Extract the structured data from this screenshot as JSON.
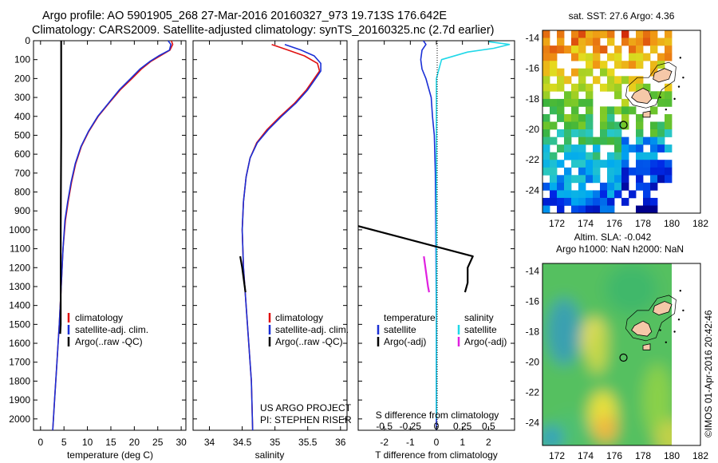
{
  "header": {
    "line1": "Argo profile: AO 5901905_268 27-Mar-2016 20160327_973 19.713S 176.642E",
    "line2": "Climatology: CARS2009. Satellite-adjusted climatology: synTS_20160325.nc (2.7d earlier)"
  },
  "colors": {
    "climatology": "#e01010",
    "satellite": "#1a2fd6",
    "argo": "#000000",
    "sat_salinity": "#20d8e8",
    "argo_adj": "#e020e0"
  },
  "chart_data": [
    {
      "id": "temperature",
      "type": "line",
      "xlabel": "temperature (deg C)",
      "xlim": [
        -1.5,
        31
      ],
      "xticks": [
        0,
        5,
        10,
        15,
        20,
        25,
        30
      ],
      "ylim": [
        2060,
        0
      ],
      "yticks": [
        0,
        100,
        200,
        300,
        400,
        500,
        600,
        700,
        800,
        900,
        1000,
        1100,
        1200,
        1300,
        1400,
        1500,
        1600,
        1700,
        1800,
        1900,
        2000
      ],
      "legend": [
        "climatology",
        "satellite-adj. clim.",
        "Argo(..raw -QC)"
      ],
      "series": [
        {
          "name": "climatology",
          "points": [
            [
              27.9,
              0
            ],
            [
              28.2,
              20
            ],
            [
              27.6,
              50
            ],
            [
              25.5,
              80
            ],
            [
              23.5,
              110
            ],
            [
              21.5,
              150
            ],
            [
              19.5,
              200
            ],
            [
              17,
              260
            ],
            [
              14.6,
              330
            ],
            [
              12.3,
              400
            ],
            [
              10.3,
              480
            ],
            [
              8.7,
              560
            ],
            [
              7.5,
              650
            ],
            [
              6.6,
              750
            ],
            [
              5.9,
              850
            ],
            [
              5.3,
              950
            ],
            [
              4.8,
              1100
            ],
            [
              4.4,
              1300
            ],
            [
              4,
              1500
            ],
            [
              3.5,
              1700
            ],
            [
              3,
              1900
            ],
            [
              2.6,
              2060
            ]
          ]
        },
        {
          "name": "satellite-adj. clim.",
          "points": [
            [
              27.2,
              0
            ],
            [
              27.8,
              20
            ],
            [
              27.5,
              50
            ],
            [
              25.2,
              80
            ],
            [
              23.3,
              110
            ],
            [
              21.2,
              150
            ],
            [
              19.2,
              200
            ],
            [
              16.8,
              260
            ],
            [
              14.5,
              330
            ],
            [
              12.2,
              400
            ],
            [
              10.2,
              480
            ],
            [
              8.6,
              560
            ],
            [
              7.4,
              650
            ],
            [
              6.5,
              750
            ],
            [
              5.8,
              850
            ],
            [
              5.2,
              950
            ],
            [
              4.8,
              1100
            ],
            [
              4.4,
              1300
            ],
            [
              4,
              1500
            ],
            [
              3.5,
              1700
            ],
            [
              3,
              1900
            ],
            [
              2.6,
              2060
            ]
          ]
        },
        {
          "name": "Argo(..raw -QC)",
          "points": [
            [
              4.4,
              0
            ],
            [
              4.4,
              500
            ],
            [
              4.3,
              1000
            ],
            [
              4.3,
              1500
            ],
            [
              4.2,
              1550
            ]
          ]
        }
      ]
    },
    {
      "id": "salinity",
      "type": "line",
      "xlabel": "salinity",
      "xlim": [
        33.75,
        36.1
      ],
      "xticks": [
        34,
        34.5,
        35,
        35.5,
        36
      ],
      "xtick_labels": [
        "34",
        "34.5",
        "35",
        "35.5",
        "36"
      ],
      "ylim": [
        2060,
        0
      ],
      "legend": [
        "climatology",
        "satellite-adj. clim.",
        "Argo(..raw -QC)"
      ],
      "series": [
        {
          "name": "climatology",
          "points": [
            [
              34.95,
              20
            ],
            [
              35.2,
              50
            ],
            [
              35.45,
              80
            ],
            [
              35.65,
              120
            ],
            [
              35.68,
              160
            ],
            [
              35.6,
              200
            ],
            [
              35.48,
              260
            ],
            [
              35.3,
              330
            ],
            [
              35.08,
              400
            ],
            [
              34.88,
              470
            ],
            [
              34.72,
              540
            ],
            [
              34.62,
              620
            ],
            [
              34.56,
              720
            ],
            [
              34.52,
              850
            ],
            [
              34.5,
              1000
            ],
            [
              34.52,
              1200
            ],
            [
              34.56,
              1400
            ],
            [
              34.6,
              1600
            ],
            [
              34.64,
              1800
            ],
            [
              34.66,
              2060
            ]
          ]
        },
        {
          "name": "satellite-adj. clim.",
          "points": [
            [
              35.15,
              20
            ],
            [
              35.4,
              50
            ],
            [
              35.6,
              80
            ],
            [
              35.7,
              120
            ],
            [
              35.7,
              160
            ],
            [
              35.62,
              200
            ],
            [
              35.5,
              260
            ],
            [
              35.32,
              330
            ],
            [
              35.1,
              400
            ],
            [
              34.9,
              470
            ],
            [
              34.73,
              540
            ],
            [
              34.62,
              620
            ],
            [
              34.56,
              720
            ],
            [
              34.52,
              850
            ],
            [
              34.5,
              1000
            ],
            [
              34.52,
              1200
            ],
            [
              34.56,
              1400
            ],
            [
              34.6,
              1600
            ],
            [
              34.64,
              1800
            ],
            [
              34.66,
              2060
            ]
          ]
        },
        {
          "name": "Argo(..raw -QC)",
          "points": [
            [
              34.47,
              1140
            ],
            [
              34.5,
              1200
            ],
            [
              34.53,
              1280
            ],
            [
              34.55,
              1330
            ]
          ]
        }
      ],
      "annotations": [
        "US ARGO PROJECT",
        "PI: STEPHEN RISER"
      ]
    },
    {
      "id": "difference",
      "type": "line",
      "xlabel": "T difference from climatology",
      "xlabel_top": "S difference from climatology",
      "xlim": [
        -3,
        3
      ],
      "xticks": [
        -2,
        -1,
        0,
        1,
        2
      ],
      "sxticks": [
        -0.5,
        -0.25,
        0,
        0.25,
        0.5
      ],
      "sxtick_labels": [
        "-0.5",
        "-0.25",
        "0",
        "0.25",
        "0.5"
      ],
      "ylim": [
        2060,
        0
      ],
      "legend_left": [
        "temperature",
        "satellite",
        "Argo(-adj)"
      ],
      "legend_right": [
        "salinity",
        "satellite",
        "Argo(-adj)"
      ],
      "series": [
        {
          "name": "T satellite",
          "points": [
            [
              -0.5,
              0
            ],
            [
              -0.4,
              20
            ],
            [
              -0.55,
              50
            ],
            [
              -0.6,
              100
            ],
            [
              -0.55,
              150
            ],
            [
              -0.4,
              200
            ],
            [
              -0.2,
              300
            ],
            [
              -0.15,
              400
            ],
            [
              -0.08,
              500
            ],
            [
              -0.04,
              700
            ],
            [
              -0.02,
              1000
            ],
            [
              0,
              1500
            ],
            [
              0,
              2060
            ]
          ]
        },
        {
          "name": "S satellite",
          "points": [
            [
              0.5,
              5
            ],
            [
              0.7,
              20
            ],
            [
              0.55,
              40
            ],
            [
              0.3,
              60
            ],
            [
              0.05,
              100
            ],
            [
              0,
              200
            ],
            [
              0,
              2000
            ]
          ]
        },
        {
          "name": "T Argo(-adj)",
          "points": [
            [
              -3,
              980
            ],
            [
              1.4,
              1140
            ],
            [
              1.2,
              1200
            ],
            [
              1.2,
              1280
            ],
            [
              1.1,
              1330
            ]
          ]
        },
        {
          "name": "S Argo(-adj)",
          "points": [
            [
              -0.12,
              1140
            ],
            [
              -0.1,
              1220
            ],
            [
              -0.08,
              1300
            ],
            [
              -0.07,
              1330
            ]
          ]
        }
      ]
    },
    {
      "id": "sst-map",
      "type": "heatmap",
      "title": "sat. SST: 27.6  Argo: 4.36",
      "xlim": [
        171,
        182
      ],
      "ylim": [
        -25.5,
        -13.5
      ],
      "xticks": [
        172,
        174,
        176,
        178,
        180,
        182
      ],
      "yticks": [
        -14,
        -16,
        -18,
        -20,
        -22,
        -24
      ],
      "argo_position": [
        176.64,
        -19.71
      ]
    },
    {
      "id": "sla-map",
      "type": "heatmap",
      "title": "Altim. SLA: -0.042",
      "subtitle": "Argo h1000: NaN h2000: NaN",
      "xlim": [
        171,
        182
      ],
      "ylim": [
        -25.5,
        -13.5
      ],
      "xticks": [
        172,
        174,
        176,
        178,
        180,
        182
      ],
      "yticks": [
        -14,
        -16,
        -18,
        -20,
        -22,
        -24
      ],
      "argo_position": [
        176.64,
        -19.71
      ]
    }
  ],
  "credit": "©IMOS 01-Apr-2016 20:42:46"
}
